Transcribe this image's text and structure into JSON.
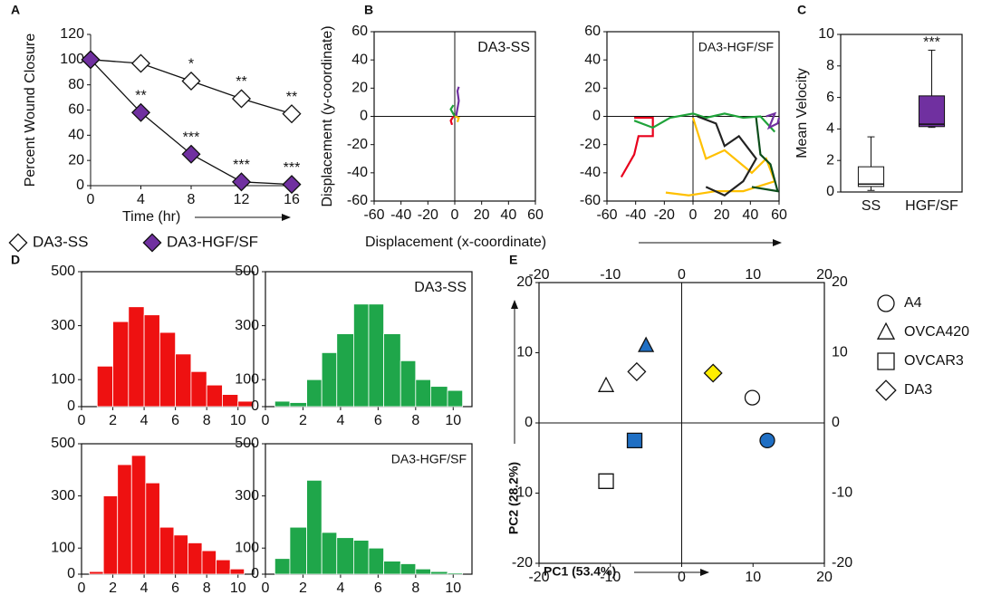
{
  "chart_data": [
    {
      "type": "line",
      "panel": "A",
      "xlabel": "Time (hr)",
      "ylabel": "Percent Wound Closure",
      "x": [
        0,
        4,
        8,
        12,
        16
      ],
      "xlim": [
        0,
        16
      ],
      "xticks": [
        0,
        4,
        8,
        12,
        16
      ],
      "ylim": [
        0,
        120
      ],
      "yticks": [
        0,
        20,
        40,
        60,
        80,
        100,
        120
      ],
      "grid": false,
      "series": [
        {
          "name": "DA3-SS",
          "color": "#ffffff",
          "values": [
            100,
            97,
            83,
            69,
            57
          ],
          "point_labels": [
            null,
            null,
            "*",
            "**",
            "**"
          ]
        },
        {
          "name": "DA3-HGF/SF",
          "color": "#7030a0",
          "values": [
            100,
            58,
            25,
            3,
            1
          ],
          "point_labels": [
            null,
            "**",
            "***",
            "***",
            "***"
          ]
        }
      ]
    },
    {
      "type": "trajectory",
      "panel": "B",
      "title": "DA3-SS",
      "ylabel": "Displacement (y-coordinate)",
      "xlabel": "Displacement (x-coordinate)",
      "xlim": [
        -60,
        60
      ],
      "xticks": [
        -60,
        -40,
        -20,
        0,
        20,
        40,
        60
      ],
      "ylim": [
        -60,
        60
      ],
      "yticks": [
        -60,
        -40,
        -20,
        0,
        20,
        40,
        60
      ],
      "series": [
        {
          "color": "#7030a0",
          "x": [
            1,
            3,
            2,
            3
          ],
          "y": [
            0,
            11,
            18,
            21
          ]
        },
        {
          "color": "#e8001c",
          "x": [
            -1,
            -3,
            -2
          ],
          "y": [
            0,
            -3,
            -6
          ]
        },
        {
          "color": "#1fa33a",
          "x": [
            0,
            -3,
            -1
          ],
          "y": [
            0,
            5,
            8
          ]
        },
        {
          "color": "#ffc000",
          "x": [
            0,
            3,
            2
          ],
          "y": [
            0,
            -1,
            -4
          ]
        }
      ]
    },
    {
      "type": "trajectory",
      "title": "DA3-HGF/SF",
      "xlim": [
        -60,
        60
      ],
      "xticks": [
        -60,
        -40,
        -20,
        0,
        20,
        40,
        60
      ],
      "ylim": [
        -60,
        60
      ],
      "yticks": [
        -60,
        -40,
        -20,
        0,
        20,
        40,
        60
      ],
      "series": [
        {
          "color": "#e8001c",
          "x": [
            -50,
            -41,
            -38,
            -28,
            -28,
            -41
          ],
          "y": [
            -43,
            -27,
            -14,
            -14,
            -1,
            -1
          ]
        },
        {
          "color": "#1fa33a",
          "x": [
            -41,
            -28,
            -16,
            0,
            9,
            22,
            35,
            47,
            57
          ],
          "y": [
            -3,
            -8,
            -1,
            2,
            -1,
            2,
            -1,
            0,
            -11
          ]
        },
        {
          "color": "#ffc000",
          "x": [
            0,
            9,
            22,
            41,
            51,
            57,
            35,
            16,
            -3,
            -19
          ],
          "y": [
            -1,
            -30,
            -24,
            -40,
            -30,
            -46,
            -53,
            -53,
            -56,
            -54
          ]
        },
        {
          "color": "#222222",
          "x": [
            3,
            16,
            22,
            32,
            44,
            35,
            22,
            9
          ],
          "y": [
            0,
            -5,
            -21,
            -14,
            -30,
            -46,
            -56,
            -50
          ]
        },
        {
          "color": "#0b4d1a",
          "x": [
            44,
            47,
            54,
            59,
            41
          ],
          "y": [
            -1,
            -27,
            -34,
            -53,
            -50
          ]
        },
        {
          "color": "#7030a0",
          "x": [
            51,
            57,
            53,
            59,
            60
          ],
          "y": [
            0,
            2,
            -8,
            -5,
            -1
          ]
        }
      ]
    },
    {
      "type": "box",
      "panel": "C",
      "ylabel": "Mean Velocity",
      "annotation": "***",
      "categories": [
        "SS",
        "HGF/SF"
      ],
      "ylim": [
        0,
        10
      ],
      "yticks": [
        0,
        2,
        4,
        6,
        8,
        10
      ],
      "boxes": [
        {
          "min": 0.1,
          "q1": 0.35,
          "median": 0.5,
          "q3": 1.6,
          "max": 3.5,
          "color": "#ffffff"
        },
        {
          "min": 4.1,
          "q1": 4.15,
          "median": 4.3,
          "q3": 6.1,
          "max": 9,
          "color": "#7030a0"
        }
      ]
    },
    {
      "type": "histogram",
      "panel": "D",
      "color": "#ee1111",
      "bins": [
        1,
        2,
        3,
        4,
        5,
        6,
        7,
        8,
        9,
        10,
        11
      ],
      "values": [
        150,
        315,
        370,
        340,
        275,
        195,
        130,
        80,
        45,
        20
      ],
      "xlim": [
        0,
        11
      ],
      "xticks": [
        0,
        2,
        4,
        6,
        8,
        10
      ],
      "ylim": [
        0,
        500
      ],
      "yticks": [
        0,
        100,
        300,
        500
      ]
    },
    {
      "type": "histogram",
      "title": "DA3-SS",
      "color": "#1fa64a",
      "bins": [
        0.5,
        1.3,
        2.2,
        3,
        3.8,
        4.7,
        5.5,
        6.3,
        7.2,
        8,
        8.8,
        9.7,
        10.5
      ],
      "values": [
        20,
        15,
        100,
        200,
        270,
        380,
        380,
        270,
        170,
        100,
        75,
        60
      ],
      "xlim": [
        0,
        11
      ],
      "xticks": [
        0,
        2,
        4,
        6,
        8,
        10
      ],
      "ylim": [
        0,
        500
      ],
      "yticks": [
        0,
        100,
        300,
        500
      ]
    },
    {
      "type": "histogram",
      "color": "#ee1111",
      "bins": [
        0.5,
        1.4,
        2.3,
        3.2,
        4.1,
        5,
        5.9,
        6.8,
        7.7,
        8.6,
        9.5,
        10.4
      ],
      "values": [
        10,
        300,
        420,
        455,
        350,
        180,
        150,
        120,
        90,
        55,
        20
      ],
      "xlim": [
        0,
        11
      ],
      "xticks": [
        0,
        2,
        4,
        6,
        8,
        10
      ],
      "ylim": [
        0,
        500
      ],
      "yticks": [
        0,
        100,
        300,
        500
      ]
    },
    {
      "type": "histogram",
      "title": "DA3-HGF/SF",
      "color": "#1fa64a",
      "bins": [
        0.5,
        1.3,
        2.2,
        3,
        3.8,
        4.7,
        5.5,
        6.3,
        7.2,
        8,
        8.8,
        9.7,
        10.5
      ],
      "values": [
        60,
        180,
        360,
        160,
        140,
        130,
        100,
        50,
        40,
        20,
        10,
        5
      ],
      "xlim": [
        0,
        11
      ],
      "xticks": [
        0,
        2,
        4,
        6,
        8,
        10
      ],
      "ylim": [
        0,
        500
      ],
      "yticks": [
        0,
        100,
        300,
        500
      ]
    },
    {
      "type": "scatter",
      "panel": "E",
      "xlabel": "PC1 (53.4%)",
      "ylabel": "PC2 (28.2%)",
      "xlim": [
        -20,
        20
      ],
      "xticks": [
        -20,
        -10,
        0,
        10,
        20
      ],
      "ylim": [
        -20,
        20
      ],
      "yticks": [
        -20,
        -10,
        0,
        10,
        20
      ],
      "series": [
        {
          "name": "A4",
          "marker": "circle",
          "x": [
            9.9,
            12
          ],
          "y": [
            3.6,
            -2.5
          ],
          "colors": [
            "#ffffff",
            "#1f6fc4"
          ]
        },
        {
          "name": "OVCA420",
          "marker": "triangle",
          "x": [
            -10.6,
            -5
          ],
          "y": [
            5.3,
            11
          ],
          "colors": [
            "#ffffff",
            "#1f6fc4"
          ]
        },
        {
          "name": "OVCAR3",
          "marker": "square",
          "x": [
            -10.6,
            -6.6
          ],
          "y": [
            -8.3,
            -2.5
          ],
          "colors": [
            "#ffffff",
            "#1f6fc4"
          ]
        },
        {
          "name": "DA3",
          "marker": "diamond",
          "x": [
            -6.3,
            4.4
          ],
          "y": [
            7.3,
            7.1
          ],
          "colors": [
            "#ffffff",
            "#ffee00"
          ]
        }
      ]
    }
  ]
}
